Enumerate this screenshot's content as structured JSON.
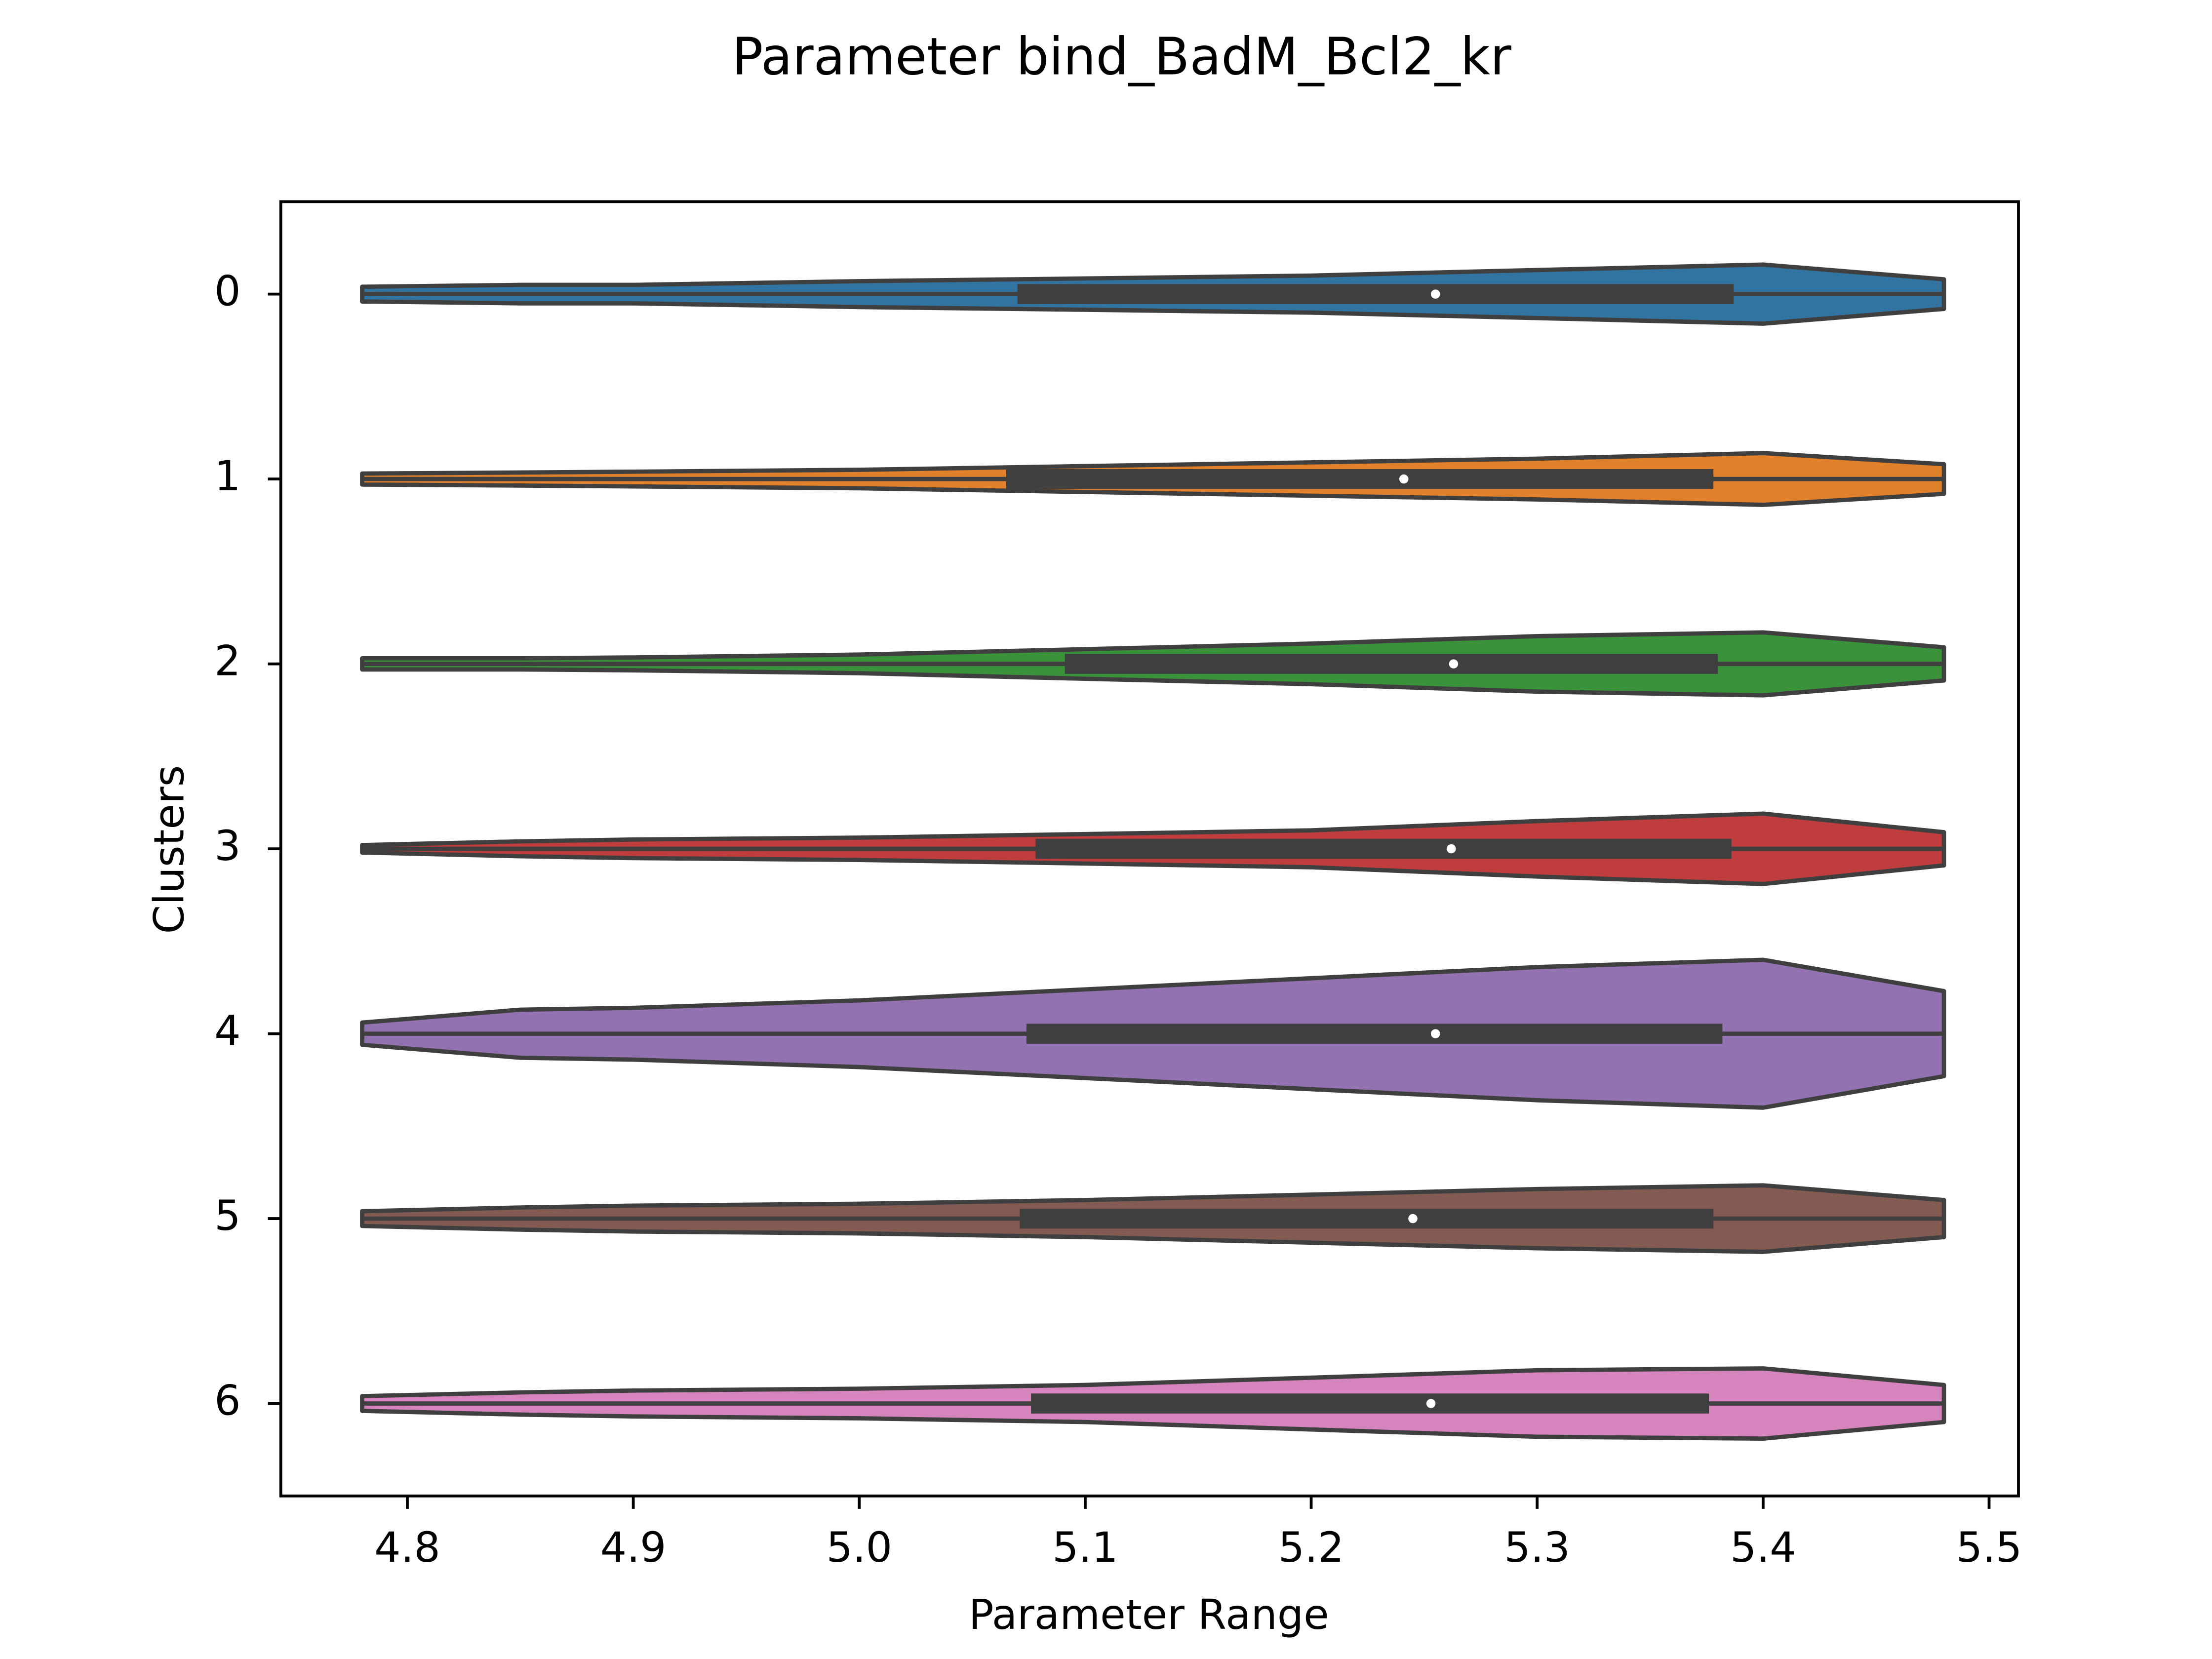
{
  "chart_data": {
    "type": "violin",
    "title": "Parameter bind_BadM_Bcl2_kr",
    "xlabel": "Parameter Range",
    "ylabel": "Clusters",
    "categories": [
      "0",
      "1",
      "2",
      "3",
      "4",
      "5",
      "6"
    ],
    "xlim": [
      4.744,
      5.513
    ],
    "xticks": [
      {
        "value": 4.8,
        "label": "4.8"
      },
      {
        "value": 4.9,
        "label": "4.9"
      },
      {
        "value": 5.0,
        "label": "5.0"
      },
      {
        "value": 5.1,
        "label": "5.1"
      },
      {
        "value": 5.2,
        "label": "5.2"
      },
      {
        "value": 5.3,
        "label": "5.3"
      },
      {
        "value": 5.4,
        "label": "5.4"
      },
      {
        "value": 5.5,
        "label": "5.5"
      }
    ],
    "ylim": [
      6.5,
      -0.5
    ],
    "kde_x": [
      4.78,
      4.85,
      4.9,
      5.0,
      5.1,
      5.2,
      5.3,
      5.4,
      5.48
    ],
    "series": [
      {
        "color": "#3274a1",
        "min": 4.78,
        "q1": 5.07,
        "median": 5.255,
        "q3": 5.387,
        "max": 5.48,
        "density": [
          0.04,
          0.05,
          0.05,
          0.07,
          0.085,
          0.1,
          0.13,
          0.16,
          0.08
        ]
      },
      {
        "color": "#e1812c",
        "min": 4.78,
        "q1": 5.065,
        "median": 5.241,
        "q3": 5.378,
        "max": 5.48,
        "density": [
          0.03,
          0.035,
          0.04,
          0.05,
          0.07,
          0.09,
          0.11,
          0.14,
          0.08
        ]
      },
      {
        "color": "#3a923a",
        "min": 4.78,
        "q1": 5.091,
        "median": 5.263,
        "q3": 5.38,
        "max": 5.48,
        "density": [
          0.03,
          0.03,
          0.035,
          0.05,
          0.08,
          0.11,
          0.15,
          0.17,
          0.09
        ]
      },
      {
        "color": "#c03d3e",
        "min": 4.78,
        "q1": 5.078,
        "median": 5.262,
        "q3": 5.386,
        "max": 5.48,
        "density": [
          0.02,
          0.04,
          0.05,
          0.06,
          0.08,
          0.1,
          0.15,
          0.19,
          0.09
        ]
      },
      {
        "color": "#9372b2",
        "min": 4.78,
        "q1": 5.074,
        "median": 5.255,
        "q3": 5.382,
        "max": 5.48,
        "density": [
          0.06,
          0.13,
          0.14,
          0.18,
          0.24,
          0.3,
          0.36,
          0.4,
          0.23
        ]
      },
      {
        "color": "#845b53",
        "min": 4.78,
        "q1": 5.071,
        "median": 5.245,
        "q3": 5.378,
        "max": 5.48,
        "density": [
          0.04,
          0.06,
          0.07,
          0.08,
          0.1,
          0.13,
          0.16,
          0.18,
          0.1
        ]
      },
      {
        "color": "#d684bd",
        "min": 4.78,
        "q1": 5.076,
        "median": 5.253,
        "q3": 5.376,
        "max": 5.48,
        "density": [
          0.04,
          0.06,
          0.07,
          0.08,
          0.1,
          0.14,
          0.18,
          0.19,
          0.1
        ]
      }
    ]
  }
}
